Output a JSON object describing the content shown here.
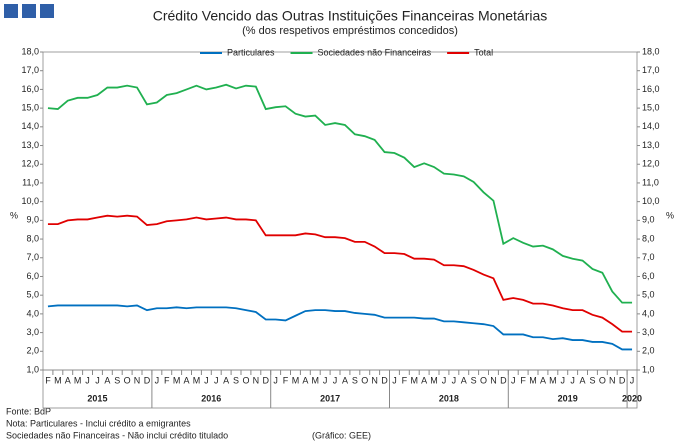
{
  "chart_data": {
    "type": "line",
    "title": "Crédito Vencido das Outras Instituições Financeiras Monetárias",
    "subtitle": "(% dos respetivos empréstimos concedidos)",
    "ylabel": "%",
    "y2label": "%",
    "categories": [
      "F",
      "M",
      "A",
      "M",
      "J",
      "J",
      "A",
      "S",
      "O",
      "N",
      "D",
      "J",
      "F",
      "M",
      "A",
      "M",
      "J",
      "J",
      "A",
      "S",
      "O",
      "N",
      "D",
      "J",
      "F",
      "M",
      "A",
      "M",
      "J",
      "J",
      "A",
      "S",
      "O",
      "N",
      "D",
      "J",
      "F",
      "M",
      "A",
      "M",
      "J",
      "J",
      "A",
      "S",
      "O",
      "N",
      "D",
      "J",
      "F",
      "M",
      "A",
      "M",
      "J",
      "J",
      "A",
      "S",
      "O",
      "N",
      "D",
      "J"
    ],
    "years": [
      "2015",
      "2016",
      "2017",
      "2018",
      "2019",
      "2020"
    ],
    "series": [
      {
        "name": "Particulares",
        "color": "#0070c0",
        "values": [
          4.4,
          4.45,
          4.45,
          4.45,
          4.45,
          4.45,
          4.45,
          4.45,
          4.4,
          4.45,
          4.2,
          4.3,
          4.3,
          4.35,
          4.3,
          4.35,
          4.35,
          4.35,
          4.35,
          4.3,
          4.2,
          4.1,
          3.7,
          3.7,
          3.65,
          3.9,
          4.15,
          4.2,
          4.2,
          4.15,
          4.15,
          4.05,
          4.0,
          3.95,
          3.8,
          3.8,
          3.8,
          3.8,
          3.75,
          3.75,
          3.6,
          3.6,
          3.55,
          3.5,
          3.45,
          3.35,
          2.9,
          2.9,
          2.9,
          2.75,
          2.75,
          2.65,
          2.7,
          2.6,
          2.6,
          2.5,
          2.5,
          2.4,
          2.1,
          2.1
        ]
      },
      {
        "name": "Sociedades não Financeiras",
        "color": "#20b050",
        "values": [
          15.0,
          14.95,
          15.4,
          15.55,
          15.55,
          15.7,
          16.1,
          16.1,
          16.2,
          16.1,
          15.2,
          15.3,
          15.7,
          15.8,
          16.0,
          16.2,
          16.0,
          16.1,
          16.25,
          16.05,
          16.2,
          16.15,
          14.95,
          15.05,
          15.1,
          14.7,
          14.55,
          14.6,
          14.1,
          14.2,
          14.1,
          13.6,
          13.5,
          13.3,
          12.65,
          12.6,
          12.35,
          11.85,
          12.05,
          11.85,
          11.5,
          11.45,
          11.35,
          11.05,
          10.5,
          10.05,
          7.75,
          8.05,
          7.8,
          7.6,
          7.65,
          7.45,
          7.1,
          6.95,
          6.85,
          6.4,
          6.2,
          5.2,
          4.6,
          4.6
        ]
      },
      {
        "name": "Total",
        "color": "#e00000",
        "values": [
          8.8,
          8.8,
          9.0,
          9.05,
          9.05,
          9.15,
          9.25,
          9.2,
          9.25,
          9.2,
          8.75,
          8.8,
          8.95,
          9.0,
          9.05,
          9.15,
          9.05,
          9.1,
          9.15,
          9.05,
          9.05,
          9.0,
          8.2,
          8.2,
          8.2,
          8.2,
          8.3,
          8.25,
          8.1,
          8.1,
          8.05,
          7.85,
          7.85,
          7.6,
          7.25,
          7.25,
          7.2,
          6.95,
          6.95,
          6.9,
          6.6,
          6.6,
          6.55,
          6.35,
          6.1,
          5.9,
          4.75,
          4.85,
          4.75,
          4.55,
          4.55,
          4.45,
          4.3,
          4.2,
          4.2,
          3.95,
          3.8,
          3.45,
          3.05,
          3.05
        ]
      }
    ],
    "ylim": [
      1,
      18
    ],
    "yticks": [
      {
        "value": 1,
        "label": "1,0"
      },
      {
        "value": 2,
        "label": "2,0"
      },
      {
        "value": 3,
        "label": "3,0"
      },
      {
        "value": 4,
        "label": "4,0"
      },
      {
        "value": 5,
        "label": "5,0"
      },
      {
        "value": 6,
        "label": "6,0"
      },
      {
        "value": 7,
        "label": "7,0"
      },
      {
        "value": 8,
        "label": "8,0"
      },
      {
        "value": 9,
        "label": "9,0"
      },
      {
        "value": 10,
        "label": "10,0"
      },
      {
        "value": 11,
        "label": "11,0"
      },
      {
        "value": 12,
        "label": "12,0"
      },
      {
        "value": 13,
        "label": "13,0"
      },
      {
        "value": 14,
        "label": "14,0"
      },
      {
        "value": 15,
        "label": "15,0"
      },
      {
        "value": 16,
        "label": "16,0"
      },
      {
        "value": 17,
        "label": "17,0"
      },
      {
        "value": 18,
        "label": "18,0"
      }
    ],
    "y2lim": [
      1,
      18
    ],
    "y2ticks": [
      {
        "value": 1,
        "label": "1,0"
      },
      {
        "value": 2,
        "label": "2,0"
      },
      {
        "value": 3,
        "label": "3,0"
      },
      {
        "value": 4,
        "label": "4,0"
      },
      {
        "value": 5,
        "label": "5,0"
      },
      {
        "value": 6,
        "label": "6,0"
      },
      {
        "value": 7,
        "label": "7,0"
      },
      {
        "value": 8,
        "label": "8,0"
      },
      {
        "value": 9,
        "label": "9,0"
      },
      {
        "value": 10,
        "label": "10,0"
      },
      {
        "value": 11,
        "label": "11,0"
      },
      {
        "value": 12,
        "label": "12,0"
      },
      {
        "value": 13,
        "label": "13,0"
      },
      {
        "value": 14,
        "label": "14,0"
      },
      {
        "value": 15,
        "label": "15,0"
      },
      {
        "value": 16,
        "label": "16,0"
      },
      {
        "value": 17,
        "label": "17,0"
      },
      {
        "value": 18,
        "label": "18,0"
      }
    ],
    "notes": [
      "Fonte: BdP",
      "Nota: Particulares - Inclui crédito a emigrantes",
      "Sociedades não Financeiras - Não inclui crédito titulado"
    ],
    "credit": "(Gráfico: GEE)"
  }
}
